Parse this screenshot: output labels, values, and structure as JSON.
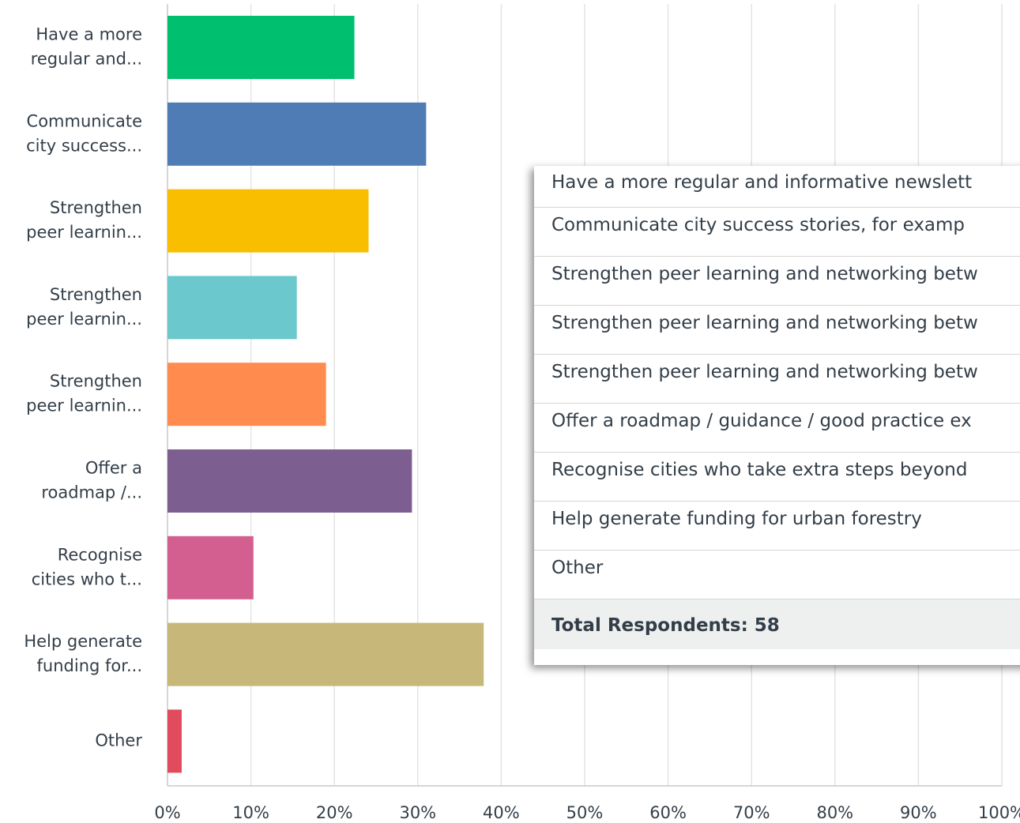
{
  "chart_data": {
    "type": "barh",
    "categories": [
      [
        "Have a more",
        "regular and..."
      ],
      [
        "Communicate",
        "city success..."
      ],
      [
        "Strengthen",
        "peer learnin..."
      ],
      [
        "Strengthen",
        "peer learnin..."
      ],
      [
        "Strengthen",
        "peer learnin..."
      ],
      [
        "Offer a",
        "roadmap /..."
      ],
      [
        "Recognise",
        "cities who t..."
      ],
      [
        "Help generate",
        "funding for..."
      ],
      [
        "Other"
      ]
    ],
    "values": [
      22.4,
      31.0,
      24.1,
      15.5,
      19.0,
      29.3,
      10.3,
      37.9,
      1.7
    ],
    "colors": [
      "#00bf6f",
      "#507cb6",
      "#f9be00",
      "#6bc8cd",
      "#ff8b4f",
      "#7d5e90",
      "#d25f90",
      "#c7b879",
      "#e04b5d"
    ],
    "xlim": [
      0,
      100
    ],
    "xticks": [
      {
        "value": 0,
        "label": "0%"
      },
      {
        "value": 10,
        "label": "10%"
      },
      {
        "value": 20,
        "label": "20%"
      },
      {
        "value": 30,
        "label": "30%"
      },
      {
        "value": 40,
        "label": "40%"
      },
      {
        "value": 50,
        "label": "50%"
      },
      {
        "value": 60,
        "label": "60%"
      },
      {
        "value": 70,
        "label": "70%"
      },
      {
        "value": 80,
        "label": "80%"
      },
      {
        "value": 90,
        "label": "90%"
      },
      {
        "value": 100,
        "label": "100%"
      }
    ],
    "grid": true
  },
  "tooltip_table": {
    "rows": [
      "Have a more regular and informative newslett",
      "Communicate city success stories, for examp",
      "Strengthen peer learning and networking betw",
      "Strengthen peer learning and networking betw",
      "Strengthen peer learning and networking betw",
      "Offer a roadmap / guidance / good practice ex",
      "Recognise cities who take extra steps beyond",
      "Help generate funding for urban forestry",
      "Other"
    ],
    "total": "Total Respondents: 58"
  }
}
